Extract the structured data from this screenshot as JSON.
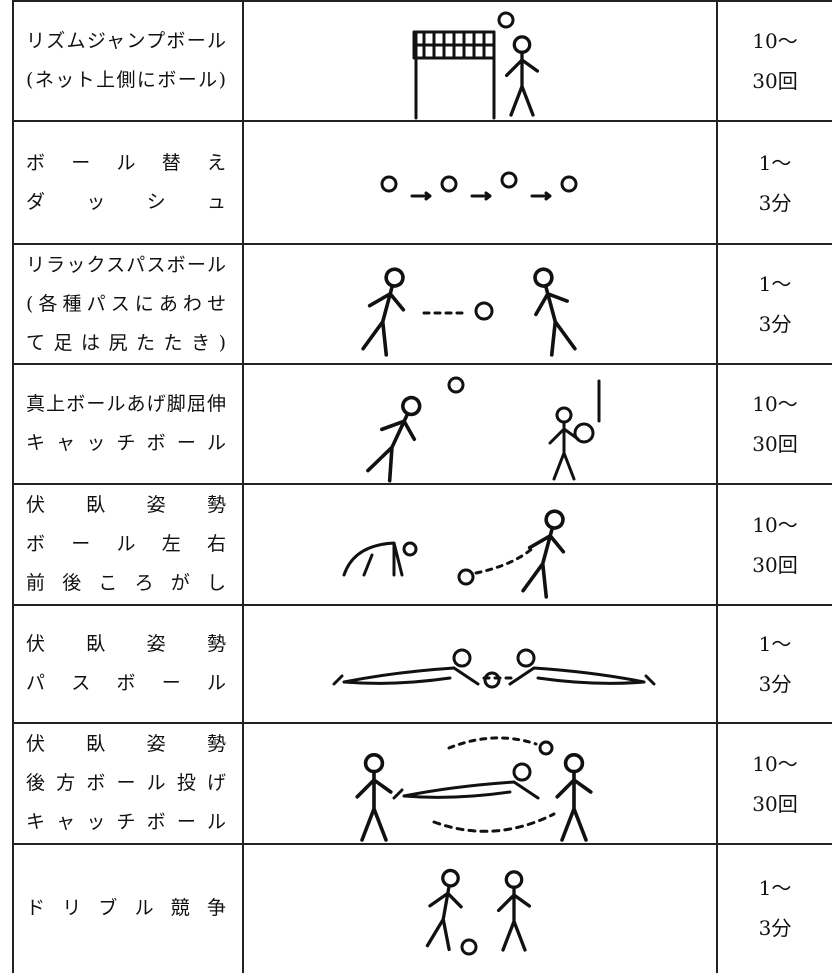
{
  "table": {
    "rows": [
      {
        "activity": [
          "リズムジャンプボール",
          "(ネット上側にボール)"
        ],
        "count": [
          "10〜",
          "30回"
        ]
      },
      {
        "activity": [
          "ボール替え",
          "ダッシュ"
        ],
        "count": [
          "1〜",
          "3分"
        ]
      },
      {
        "activity": [
          "リラックスパスボール",
          "(各種パスにあわせ",
          "て足は尻たたき)"
        ],
        "count": [
          "1〜",
          "3分"
        ]
      },
      {
        "activity": [
          "真上ボールあげ脚屈伸",
          "キャッチボール"
        ],
        "count": [
          "10〜",
          "30回"
        ]
      },
      {
        "activity": [
          "伏臥姿勢",
          "ボール左右",
          "前後ころがし"
        ],
        "count": [
          "10〜",
          "30回"
        ]
      },
      {
        "activity": [
          "伏臥姿勢",
          "パスボール"
        ],
        "count": [
          "1〜",
          "3分"
        ]
      },
      {
        "activity": [
          "伏臥姿勢",
          "後方ボール投げ",
          "キャッチボール"
        ],
        "count": [
          "10〜",
          "30回"
        ]
      },
      {
        "activity": [
          "ドリブル競争"
        ],
        "count": [
          "1〜",
          "3分"
        ]
      }
    ]
  }
}
